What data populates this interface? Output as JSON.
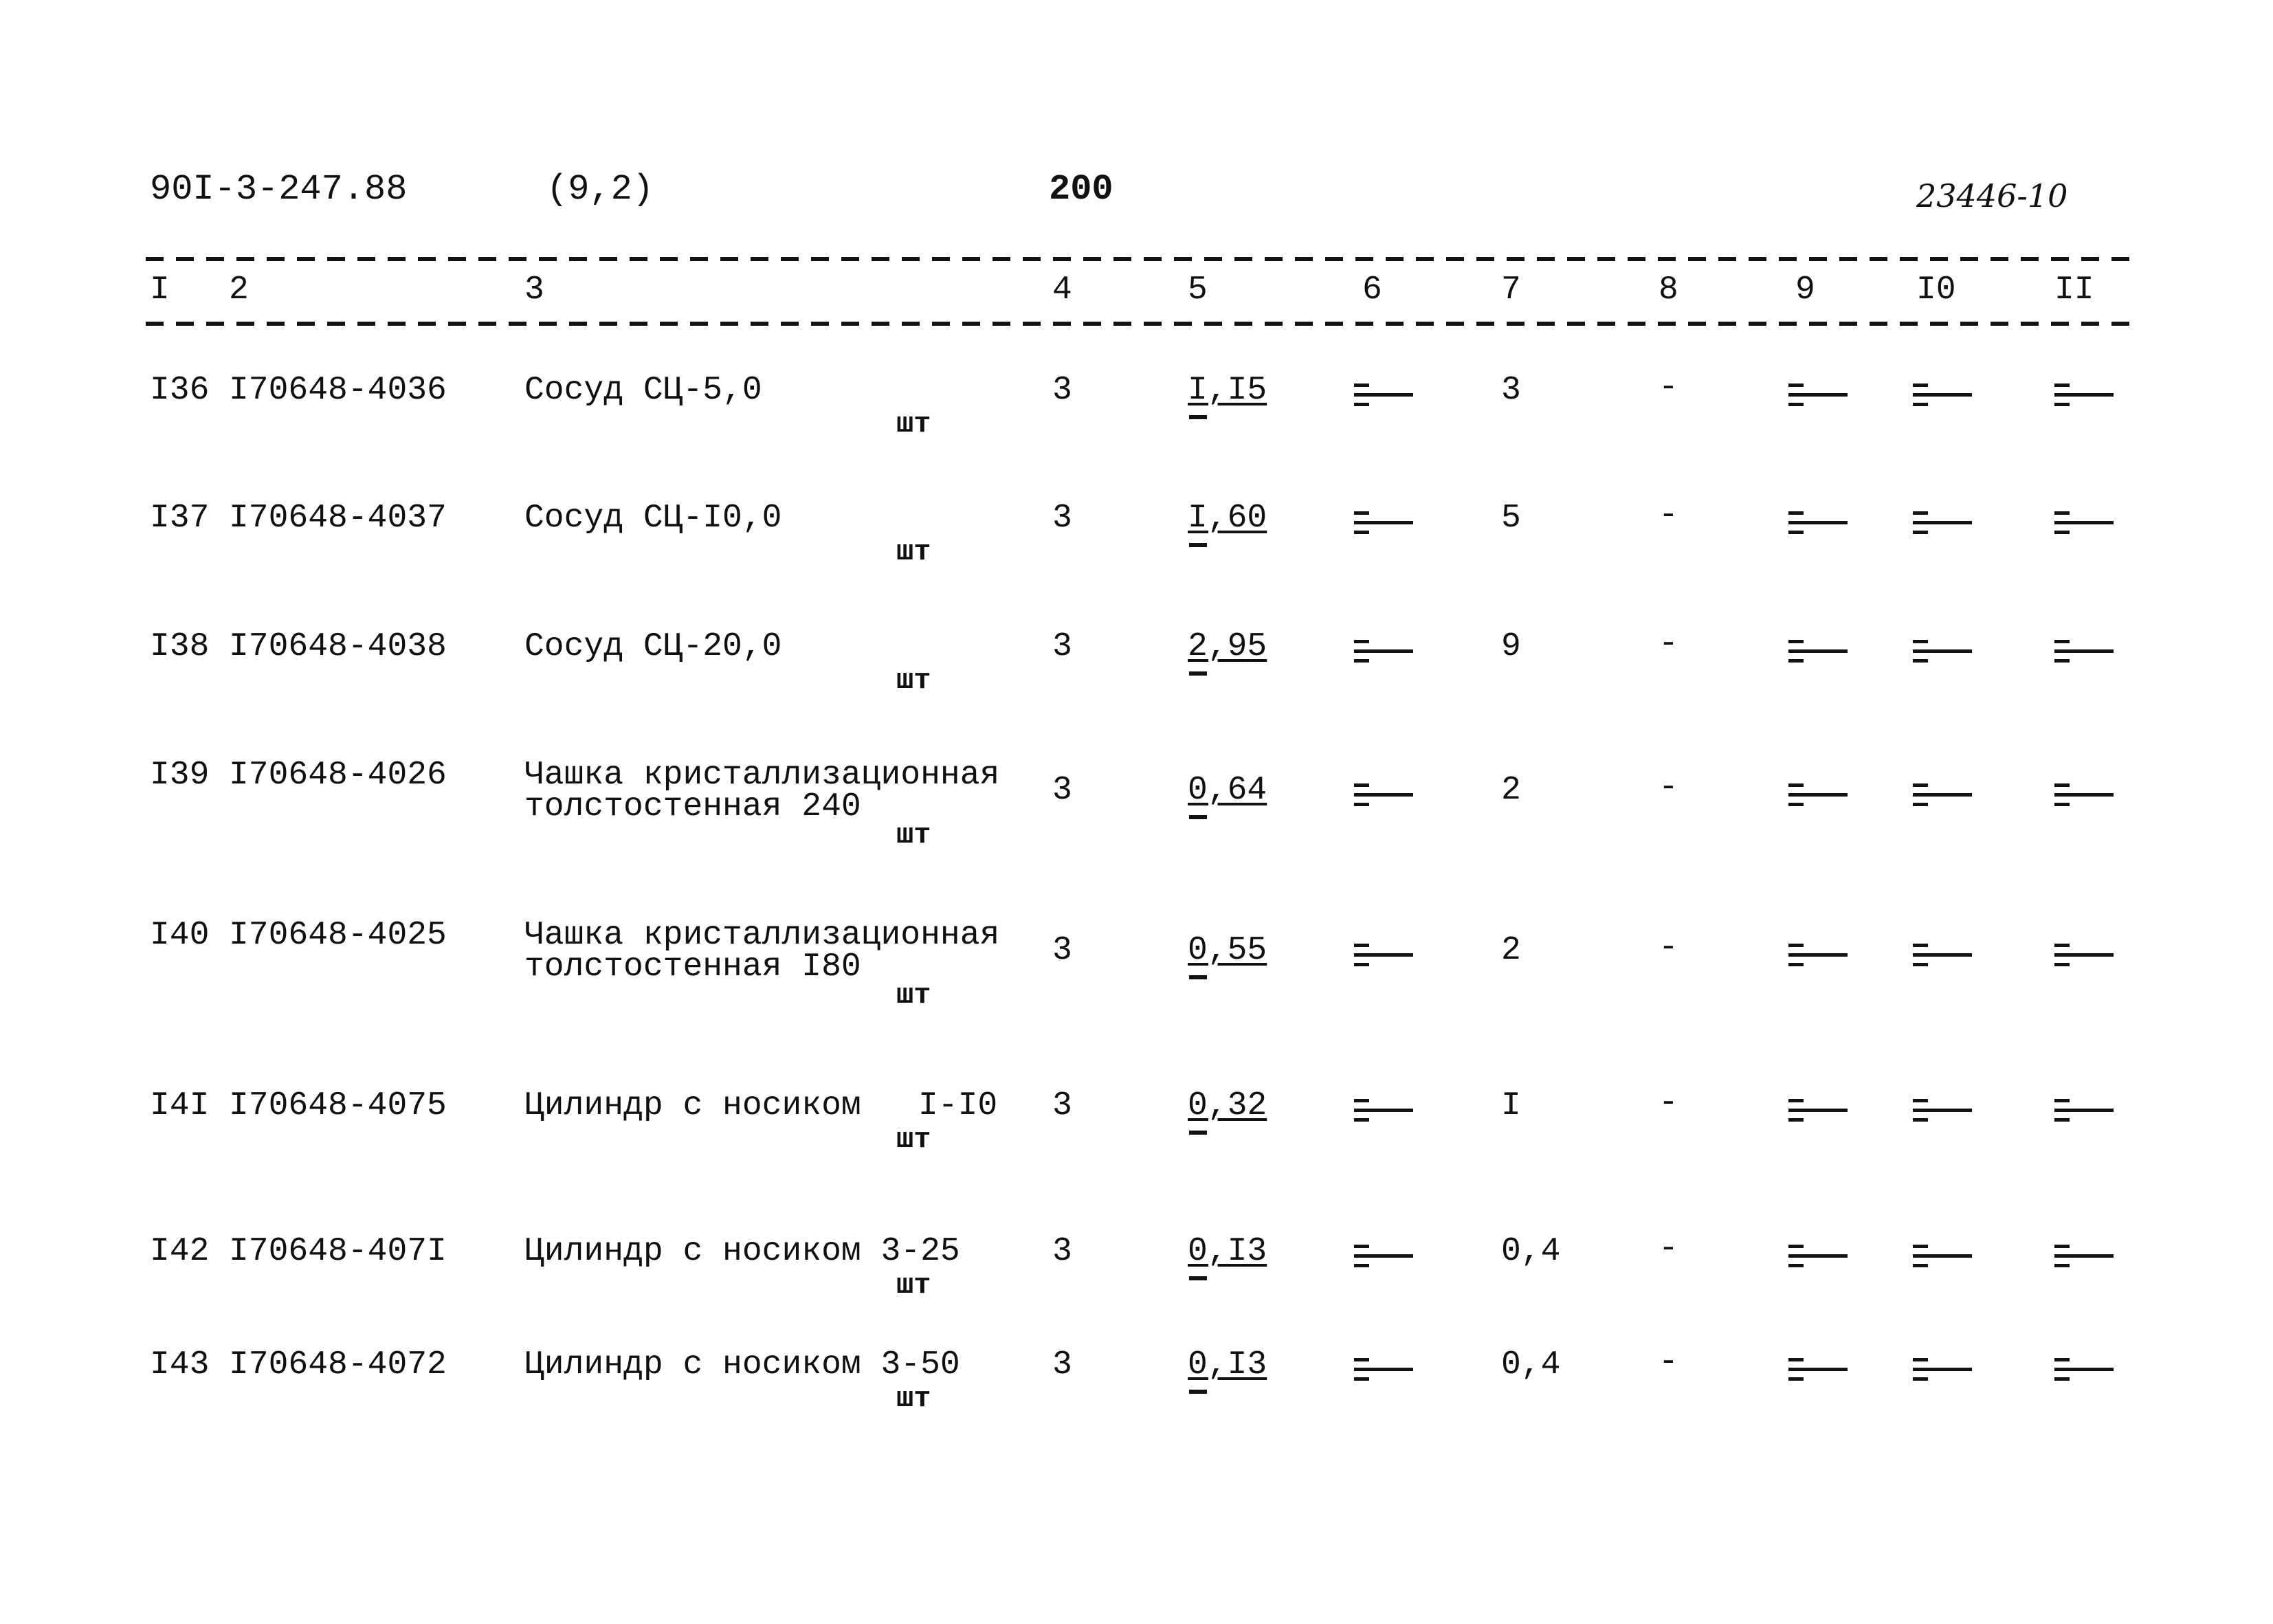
{
  "header": {
    "doc_number": "90I-3-247.88",
    "section": "(9,2)",
    "page": "200",
    "handwritten_ref": "23446-10"
  },
  "columns": [
    "I",
    "2",
    "3",
    "4",
    "5",
    "6",
    "7",
    "8",
    "9",
    "I0",
    "II"
  ],
  "rows": [
    {
      "num": "I36",
      "code": "I70648-4036",
      "name": [
        "Сосуд СЦ-5,0"
      ],
      "size": "",
      "unit": "шт",
      "c4": "3",
      "c5": "I,I5",
      "c7": "3",
      "c8": "-"
    },
    {
      "num": "I37",
      "code": "I70648-4037",
      "name": [
        "Сосуд СЦ-I0,0"
      ],
      "size": "",
      "unit": "шт",
      "c4": "3",
      "c5": "I,60",
      "c7": "5",
      "c8": "-"
    },
    {
      "num": "I38",
      "code": "I70648-4038",
      "name": [
        "Сосуд СЦ-20,0"
      ],
      "size": "",
      "unit": "шт",
      "c4": "3",
      "c5": "2,95",
      "c7": "9",
      "c8": "-"
    },
    {
      "num": "I39",
      "code": "I70648-4026",
      "name": [
        "Чашка кристаллизационная",
        "толстостенная 240"
      ],
      "size": "",
      "unit": "шт",
      "c4": "3",
      "c5": "0,64",
      "c7": "2",
      "c8": "-"
    },
    {
      "num": "I40",
      "code": "I70648-4025",
      "name": [
        "Чашка кристаллизационная",
        "толстостенная I80"
      ],
      "size": "",
      "unit": "шт",
      "c4": "3",
      "c5": "0,55",
      "c7": "2",
      "c8": "-"
    },
    {
      "num": "I4I",
      "code": "I70648-4075",
      "name": [
        "Цилиндр с носиком"
      ],
      "size": "I-I0",
      "unit": "шт",
      "c4": "3",
      "c5": "0,32",
      "c7": "I",
      "c8": "-"
    },
    {
      "num": "I42",
      "code": "I70648-407I",
      "name": [
        "Цилиндр с носиком 3-25"
      ],
      "size": "",
      "unit": "шт",
      "c4": "3",
      "c5": "0,I3",
      "c7": "0,4",
      "c8": "-"
    },
    {
      "num": "I43",
      "code": "I70648-4072",
      "name": [
        "Цилиндр с носиком 3-50"
      ],
      "size": "",
      "unit": "шт",
      "c4": "3",
      "c5": "0,I3",
      "c7": "0,4",
      "c8": "-"
    }
  ],
  "ditto_mark_icon": "ditto-mark"
}
